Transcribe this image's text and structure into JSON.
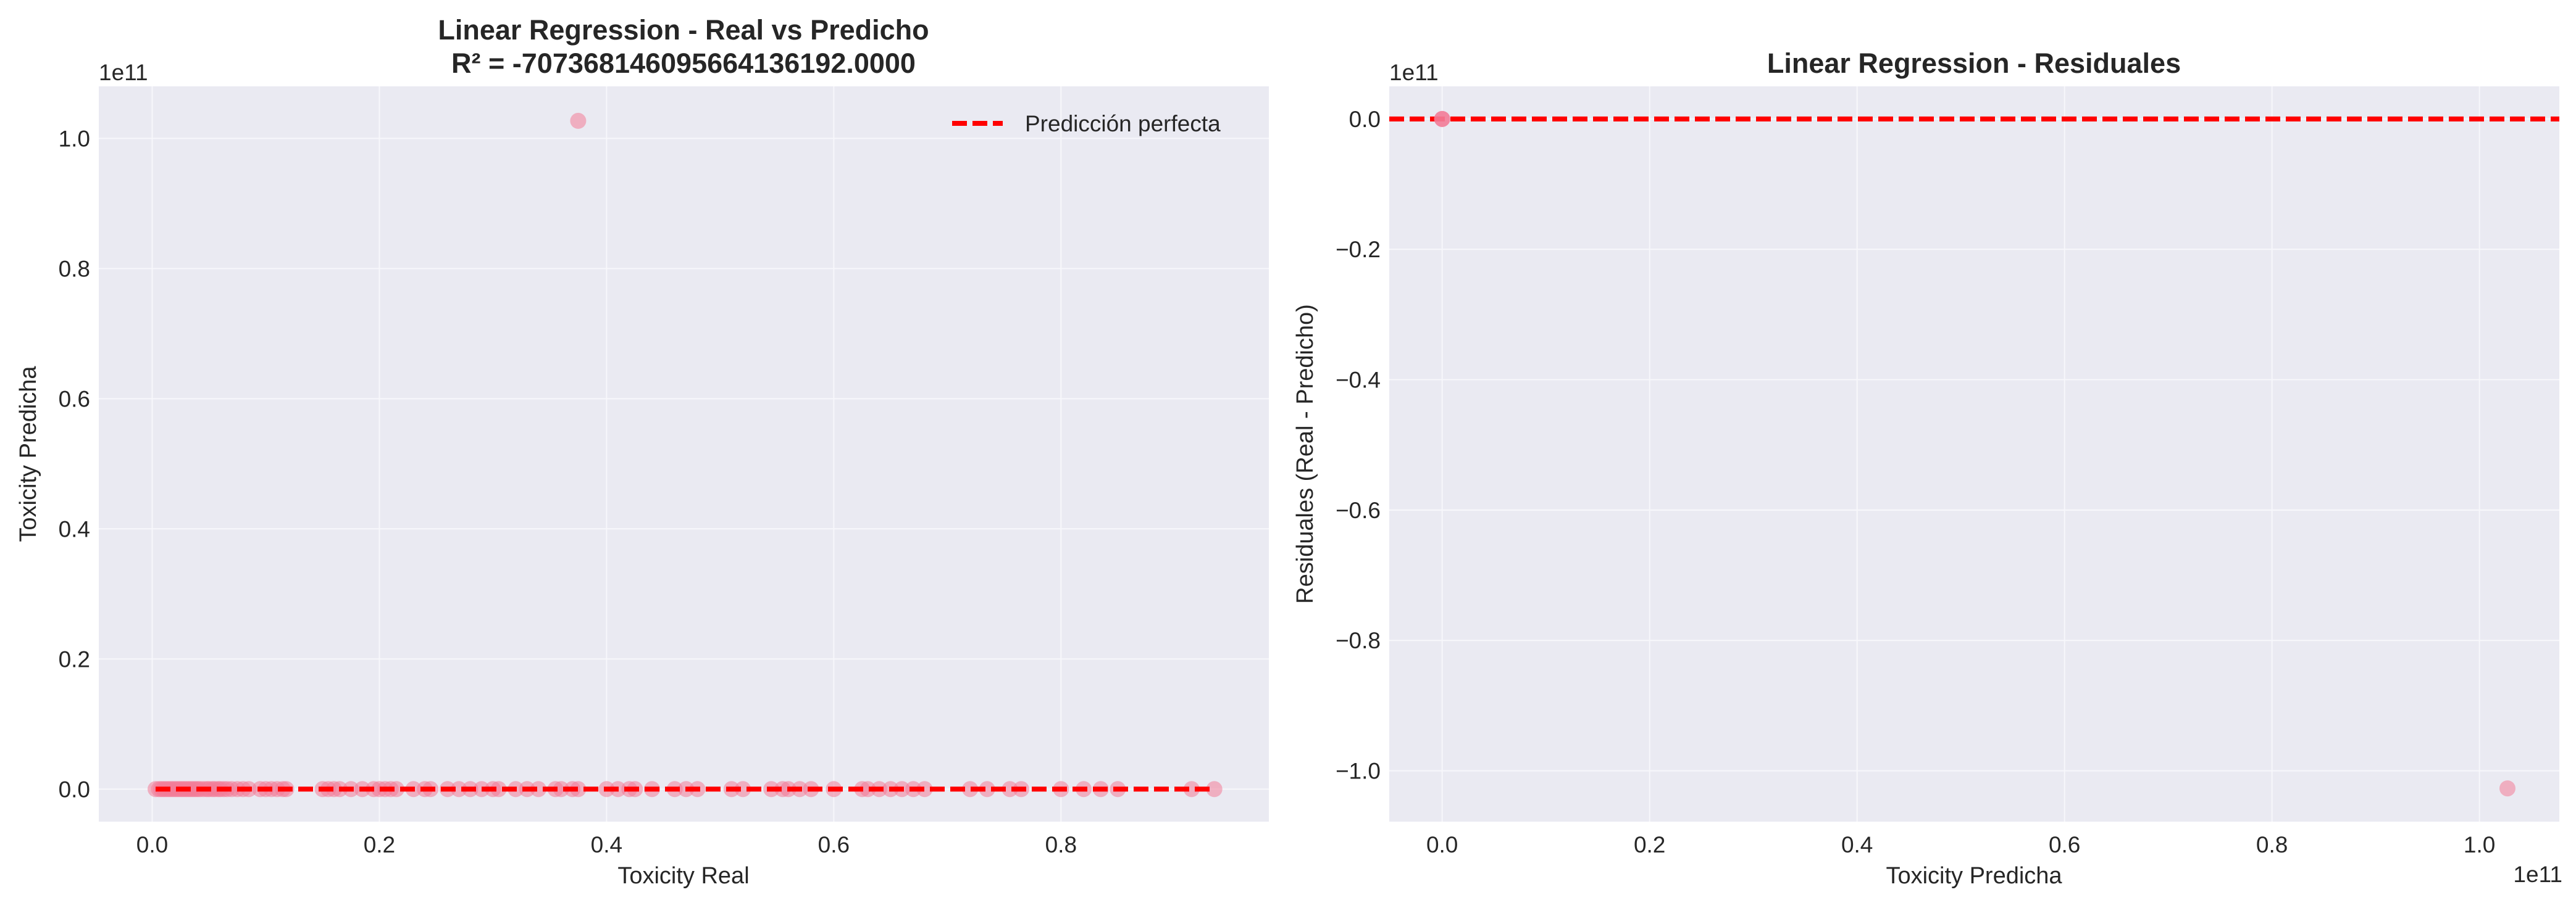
{
  "colors": {
    "plot_bg": "#EAEAF2",
    "grid": "#F7F7FB",
    "points": "#F37C97",
    "ref_line": "#FF0000"
  },
  "chart_data": [
    {
      "type": "scatter",
      "title": "Linear Regression - Real vs Predicho",
      "subtitle": "R² = -7073681460956641361​92.0000",
      "xlabel": "Toxicity Real",
      "ylabel": "Toxicity Predicha",
      "x_offset_text": "",
      "y_offset_text": "1e11",
      "xlim": [
        -0.047,
        0.983
      ],
      "ylim": [
        -0.05,
        1.08
      ],
      "xticks": [
        0.0,
        0.2,
        0.4,
        0.6,
        0.8
      ],
      "xtick_labels": [
        "0.0",
        "0.2",
        "0.4",
        "0.6",
        "0.8"
      ],
      "yticks": [
        0.0,
        0.2,
        0.4,
        0.6,
        0.8,
        1.0
      ],
      "ytick_labels": [
        "0.0",
        "0.2",
        "0.4",
        "0.6",
        "0.8",
        "1.0"
      ],
      "grid": true,
      "legend": {
        "position": "top-right",
        "entries": [
          "Predicción perfecta"
        ]
      },
      "reference_line": {
        "name": "Predicción perfecta",
        "x": [
          0.003,
          0.935
        ],
        "y": [
          0.0,
          0.0
        ],
        "style": "dashed"
      },
      "x": [
        0.003,
        0.006,
        0.008,
        0.01,
        0.012,
        0.014,
        0.016,
        0.018,
        0.02,
        0.022,
        0.024,
        0.026,
        0.028,
        0.03,
        0.032,
        0.034,
        0.036,
        0.038,
        0.04,
        0.042,
        0.045,
        0.048,
        0.05,
        0.053,
        0.055,
        0.058,
        0.06,
        0.063,
        0.066,
        0.07,
        0.075,
        0.08,
        0.085,
        0.095,
        0.1,
        0.105,
        0.11,
        0.115,
        0.118,
        0.15,
        0.155,
        0.16,
        0.165,
        0.175,
        0.185,
        0.195,
        0.2,
        0.205,
        0.21,
        0.215,
        0.23,
        0.24,
        0.245,
        0.26,
        0.27,
        0.28,
        0.29,
        0.3,
        0.305,
        0.32,
        0.33,
        0.34,
        0.355,
        0.36,
        0.37,
        0.375,
        0.4,
        0.41,
        0.42,
        0.425,
        0.44,
        0.46,
        0.47,
        0.48,
        0.51,
        0.52,
        0.545,
        0.555,
        0.56,
        0.57,
        0.58,
        0.6,
        0.625,
        0.63,
        0.64,
        0.65,
        0.66,
        0.67,
        0.68,
        0.72,
        0.735,
        0.755,
        0.765,
        0.8,
        0.82,
        0.835,
        0.85,
        0.915,
        0.935,
        0.375
      ],
      "y": [
        0,
        0,
        0,
        0,
        0,
        0,
        0,
        0,
        0,
        0,
        0,
        0,
        0,
        0,
        0,
        0,
        0,
        0,
        0,
        0,
        0,
        0,
        0,
        0,
        0,
        0,
        0,
        0,
        0,
        0,
        0,
        0,
        0,
        0,
        0,
        0,
        0,
        0,
        0,
        0,
        0,
        0,
        0,
        0,
        0,
        0,
        0,
        0,
        0,
        0,
        0,
        0,
        0,
        0,
        0,
        0,
        0,
        0,
        0,
        0,
        0,
        0,
        0,
        0,
        0,
        0,
        0,
        0,
        0,
        0,
        0,
        0,
        0,
        0,
        0,
        0,
        0,
        0,
        0,
        0,
        0,
        0,
        0,
        0,
        0,
        0,
        0,
        0,
        0,
        0,
        0,
        0,
        0,
        0,
        0,
        0,
        0,
        0,
        0,
        1.027
      ]
    },
    {
      "type": "scatter",
      "title": "Linear Regression - Residuales",
      "subtitle": "",
      "xlabel": "Toxicity Predicha",
      "ylabel": "Residuales (Real - Predicho)",
      "x_offset_text": "1e11",
      "y_offset_text": "1e11",
      "xlim": [
        -0.051,
        1.077
      ],
      "ylim": [
        -1.078,
        0.05
      ],
      "xticks": [
        0.0,
        0.2,
        0.4,
        0.6,
        0.8,
        1.0
      ],
      "xtick_labels": [
        "0.0",
        "0.2",
        "0.4",
        "0.6",
        "0.8",
        "1.0"
      ],
      "yticks": [
        0.0,
        -0.2,
        -0.4,
        -0.6,
        -0.8,
        -1.0
      ],
      "ytick_labels": [
        "0.0",
        "−0.2",
        "−0.4",
        "−0.6",
        "−0.8",
        "−1.0"
      ],
      "grid": true,
      "legend": null,
      "reference_line": {
        "name": "y = 0",
        "x": [
          -0.051,
          1.077
        ],
        "y": [
          0.0,
          0.0
        ],
        "style": "dashed"
      },
      "x": [
        0.0,
        0.0,
        0.0,
        1.027
      ],
      "y": [
        0.0,
        0.0,
        0.0,
        -1.027
      ]
    }
  ]
}
